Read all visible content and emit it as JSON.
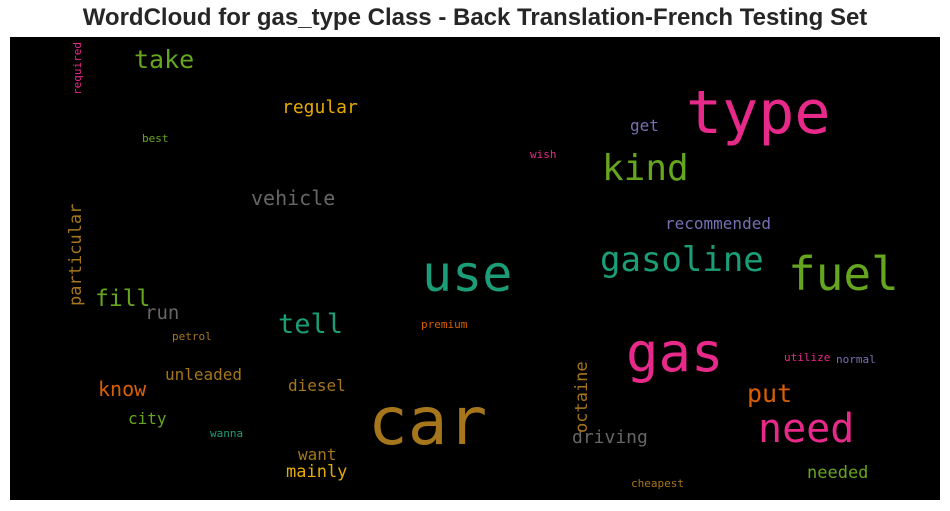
{
  "title": "WordCloud for gas_type Class - Back Translation-French Testing Set",
  "background": "#000000",
  "palette": "Dark2",
  "words": [
    {
      "text": "car",
      "color": "#a6761d"
    },
    {
      "text": "type",
      "color": "#e7298a"
    },
    {
      "text": "use",
      "color": "#1b9e77"
    },
    {
      "text": "gas",
      "color": "#e7298a"
    },
    {
      "text": "fuel",
      "color": "#66a61e"
    },
    {
      "text": "need",
      "color": "#e7298a"
    },
    {
      "text": "kind",
      "color": "#66a61e"
    },
    {
      "text": "gasoline",
      "color": "#1b9e77"
    },
    {
      "text": "tell",
      "color": "#1b9e77"
    },
    {
      "text": "take",
      "color": "#66a61e"
    },
    {
      "text": "put",
      "color": "#d95f02"
    },
    {
      "text": "fill",
      "color": "#66a61e"
    },
    {
      "text": "vehicle",
      "color": "#666666"
    },
    {
      "text": "know",
      "color": "#d95f02"
    },
    {
      "text": "run",
      "color": "#666666"
    },
    {
      "text": "driving",
      "color": "#666666"
    },
    {
      "text": "regular",
      "color": "#e6ab02"
    },
    {
      "text": "particular",
      "color": "#a6761d"
    },
    {
      "text": "octaine",
      "color": "#a6761d"
    },
    {
      "text": "recommended",
      "color": "#7570b3"
    },
    {
      "text": "unleaded",
      "color": "#a6761d"
    },
    {
      "text": "diesel",
      "color": "#a6761d"
    },
    {
      "text": "needed",
      "color": "#66a61e"
    },
    {
      "text": "mainly",
      "color": "#e6ab02"
    },
    {
      "text": "want",
      "color": "#a6761d"
    },
    {
      "text": "city",
      "color": "#66a61e"
    },
    {
      "text": "get",
      "color": "#7570b3"
    },
    {
      "text": "wish",
      "color": "#e7298a"
    },
    {
      "text": "best",
      "color": "#66a61e"
    },
    {
      "text": "required",
      "color": "#e7298a"
    },
    {
      "text": "petrol",
      "color": "#a6761d"
    },
    {
      "text": "premium",
      "color": "#d95f02"
    },
    {
      "text": "utilize",
      "color": "#e7298a"
    },
    {
      "text": "normal",
      "color": "#7570b3"
    },
    {
      "text": "wanna",
      "color": "#1b9e77"
    },
    {
      "text": "cheapest",
      "color": "#a6761d"
    }
  ]
}
